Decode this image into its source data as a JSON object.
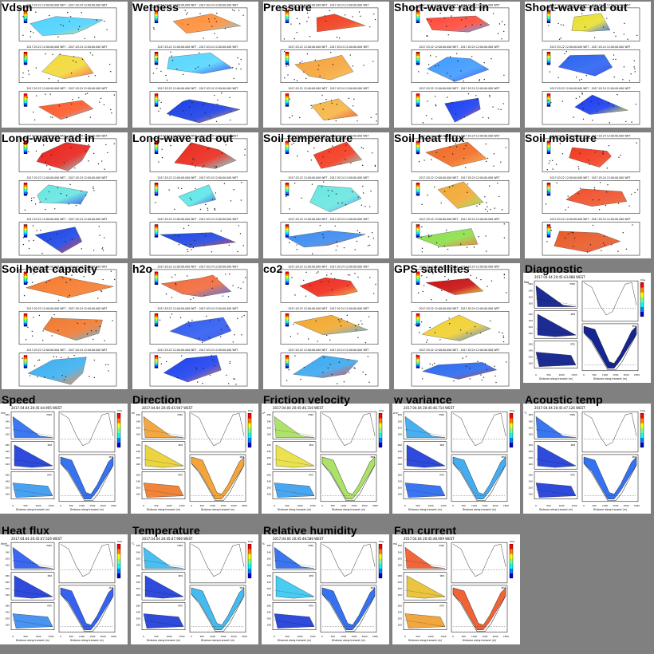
{
  "page": {
    "background": "#808080"
  },
  "map_caption": "2017.03.22 12:00:00.000 WET - 2017.03.24 12:00:00.000 WET",
  "transect": {
    "xlabel": "Distance along transect (m)",
    "tick_labels_main": [
      "0",
      "500",
      "1000",
      "1500",
      "2000",
      "2500"
    ],
    "tick_labels_small": [
      "0",
      "500",
      "1000",
      "1500"
    ],
    "yticks": [
      "280",
      "240",
      "200",
      "160"
    ],
    "colorbar_title": "time",
    "panel_labels": [
      "max",
      "last",
      "min"
    ]
  },
  "tiles": [
    {
      "id": "vdsm",
      "label": "Vdsm",
      "kind": "map",
      "colors": [
        "#4fd3ff",
        "#f2d93a",
        "#ff5a2a"
      ]
    },
    {
      "id": "wetness",
      "label": "Wetness",
      "kind": "map",
      "colors": [
        "#ff8f3a",
        "#56d6ff",
        "#1b3fe6"
      ]
    },
    {
      "id": "pressure",
      "label": "Pressure",
      "kind": "map",
      "colors": [
        "#f04020",
        "#f6a43a",
        "#f5b645"
      ]
    },
    {
      "id": "sw_in",
      "label": "Short-wave rad in",
      "kind": "map",
      "colors": [
        "#ff4a3a",
        "#3f9bff",
        "#1c3ef0"
      ]
    },
    {
      "id": "sw_out",
      "label": "Short-wave rad out",
      "kind": "map",
      "colors": [
        "#e8e030",
        "#2a63f0",
        "#1a3cef"
      ]
    },
    {
      "id": "lw_in",
      "label": "Long-wave rad in",
      "kind": "map",
      "colors": [
        "#e8231c",
        "#67e6e0",
        "#1a45e6"
      ]
    },
    {
      "id": "lw_out",
      "label": "Long-wave rad out",
      "kind": "map",
      "colors": [
        "#ea2a1e",
        "#5de6e8",
        "#1f48e2"
      ]
    },
    {
      "id": "soil_temp",
      "label": "Soil temperature",
      "kind": "map",
      "colors": [
        "#f33a1f",
        "#6ae6e0",
        "#3c8bf0"
      ]
    },
    {
      "id": "soil_heat_flux",
      "label": "Soil heat flux",
      "kind": "map",
      "colors": [
        "#f26a22",
        "#f2a834",
        "#8be04a"
      ]
    },
    {
      "id": "soil_moisture",
      "label": "Soil moisture",
      "kind": "map",
      "colors": [
        "#f23a1e",
        "#f0502a",
        "#e85a28"
      ]
    },
    {
      "id": "soil_heat_cap",
      "label": "Soil heat capacity",
      "kind": "map",
      "colors": [
        "#f57a2a",
        "#f07a30",
        "#3bb0f0"
      ]
    },
    {
      "id": "h2o",
      "label": "h2o",
      "kind": "map",
      "colors": [
        "#f26a3a",
        "#2e5cf0",
        "#1d40ee"
      ]
    },
    {
      "id": "co2",
      "label": "co2",
      "kind": "map",
      "colors": [
        "#ee2a1c",
        "#f2a830",
        "#3aa8f0"
      ]
    },
    {
      "id": "gps",
      "label": "GPS satellites",
      "kind": "map",
      "colors": [
        "#c81010",
        "#f0d030",
        "#2a6af0"
      ]
    },
    {
      "id": "diagnostic",
      "label": "Diagnostic",
      "kind": "transect",
      "colors": [
        "#0a1a8a",
        "#0a1a8a",
        "#0a1a8a"
      ],
      "timestamp": "2017.04.04 20:45:43.888 WEST",
      "unit": "Mag"
    },
    {
      "id": "speed",
      "label": "Speed",
      "kind": "transect",
      "colors": [
        "#2b6cf0",
        "#1c3cd8",
        "#3a9af0"
      ],
      "timestamp": "2017.04.04 20:45:44.905 WEST",
      "unit": "km/"
    },
    {
      "id": "direction",
      "label": "Direction",
      "kind": "transect",
      "colors": [
        "#f2a030",
        "#e8d030",
        "#f07a2a"
      ],
      "timestamp": "2017.04.04 20:45:45.947 WEST",
      "unit": "dir"
    },
    {
      "id": "friction",
      "label": "Friction velocity",
      "kind": "transect",
      "colors": [
        "#a8e060",
        "#e8e040",
        "#3aa0f0"
      ],
      "timestamp": "2017.04.04 20:45:46.316 WEST",
      "unit": "u*"
    },
    {
      "id": "w_var",
      "label": "w variance",
      "kind": "transect",
      "colors": [
        "#3aa8f0",
        "#1c3cd8",
        "#2a6af0"
      ],
      "timestamp": "2017.04.04 20:45:46.714 WEST",
      "unit": "w'w'"
    },
    {
      "id": "acoustic",
      "label": "Acoustic temp",
      "kind": "transect",
      "colors": [
        "#2a6af0",
        "#1c3cd8",
        "#1c3cd8"
      ],
      "timestamp": "2017.04.04 20:45:47.126 WEST",
      "unit": "°C"
    },
    {
      "id": "heat_flux",
      "label": "Heat flux",
      "kind": "transect",
      "colors": [
        "#2a5af0",
        "#1c3cd8",
        "#3a8af0"
      ],
      "timestamp": "2017.04.04 20:45:47.526 WEST",
      "unit": "W/m²"
    },
    {
      "id": "temperature",
      "label": "Temperature",
      "kind": "transect",
      "colors": [
        "#3ab8f0",
        "#1c3cd8",
        "#1c3cd8"
      ],
      "timestamp": "2017.04.04 20:45:47.966 WEST",
      "unit": "°C"
    },
    {
      "id": "rel_humidity",
      "label": "Relative humidity",
      "kind": "transect",
      "colors": [
        "#2a6af0",
        "#3ac8f0",
        "#1c3cd8"
      ],
      "timestamp": "2017.04.04 20:45:48.586 WEST",
      "unit": "%"
    },
    {
      "id": "fan_current",
      "label": "Fan current",
      "kind": "transect",
      "colors": [
        "#f05a2a",
        "#e8c030",
        "#f0a030"
      ],
      "timestamp": "2017.04.04 20:45:48.909 WEST",
      "unit": "mA"
    }
  ]
}
